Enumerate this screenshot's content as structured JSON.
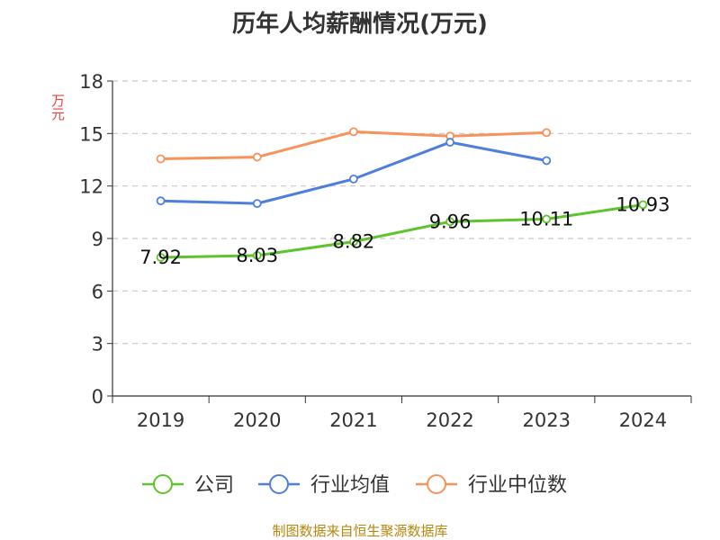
{
  "chart_data": {
    "type": "line",
    "title": "历年人均薪酬情况(万元)",
    "ylabel": "万元",
    "xlabel": "",
    "categories": [
      "2019",
      "2020",
      "2021",
      "2022",
      "2023",
      "2024"
    ],
    "ylim": [
      0,
      18
    ],
    "yticks": [
      0,
      3,
      6,
      9,
      12,
      15,
      18
    ],
    "grid": "horizontal-dashed",
    "legend_position": "bottom",
    "series": [
      {
        "name": "公司",
        "color": "#5ec42b",
        "values": [
          7.92,
          8.03,
          8.82,
          9.96,
          10.11,
          10.93
        ],
        "labels": [
          "7.92",
          "8.03",
          "8.82",
          "9.96",
          "10.11",
          "10.93"
        ]
      },
      {
        "name": "行业均值",
        "color": "#4e7fdc",
        "values": [
          11.15,
          11.0,
          12.4,
          14.5,
          13.45,
          null
        ]
      },
      {
        "name": "行业中位数",
        "color": "#f7925a",
        "values": [
          13.55,
          13.65,
          15.1,
          14.85,
          15.05,
          null
        ]
      }
    ]
  },
  "source": "制图数据来自恒生聚源数据库"
}
